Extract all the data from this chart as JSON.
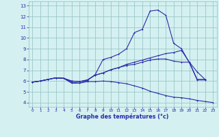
{
  "xlabel": "Graphe des températures (°c)",
  "x": [
    0,
    1,
    2,
    3,
    4,
    5,
    6,
    7,
    8,
    9,
    10,
    11,
    12,
    13,
    14,
    15,
    16,
    17,
    18,
    19,
    20,
    21,
    22,
    23
  ],
  "line1": [
    5.9,
    6.0,
    6.15,
    6.3,
    6.25,
    5.9,
    5.8,
    6.05,
    6.6,
    8.0,
    8.2,
    8.5,
    9.0,
    10.5,
    10.8,
    12.5,
    12.6,
    12.1,
    9.5,
    9.0,
    7.7,
    6.1,
    6.1,
    null
  ],
  "line2": [
    5.9,
    6.0,
    6.15,
    6.3,
    6.25,
    6.0,
    5.95,
    6.1,
    6.55,
    6.75,
    7.05,
    7.25,
    7.55,
    7.75,
    7.95,
    8.15,
    8.35,
    8.55,
    8.65,
    8.85,
    7.75,
    6.85,
    6.15,
    null
  ],
  "line3": [
    5.9,
    6.0,
    6.15,
    6.3,
    6.25,
    6.0,
    5.95,
    6.1,
    6.55,
    6.75,
    7.05,
    7.25,
    7.45,
    7.55,
    7.75,
    7.95,
    8.05,
    8.05,
    7.85,
    7.75,
    7.75,
    6.15,
    6.15,
    null
  ],
  "line4": [
    5.9,
    6.0,
    6.15,
    6.3,
    6.25,
    5.8,
    5.8,
    5.95,
    5.95,
    6.0,
    5.95,
    5.85,
    5.75,
    5.55,
    5.35,
    5.05,
    4.85,
    4.65,
    4.5,
    4.45,
    4.35,
    4.2,
    4.1,
    4.0
  ],
  "line_color": "#2929aa",
  "bg_color": "#d4f0f0",
  "grid_color": "#90c0c0",
  "xlim": [
    -0.5,
    23.5
  ],
  "ylim": [
    3.6,
    13.4
  ],
  "xticks": [
    0,
    1,
    2,
    3,
    4,
    5,
    6,
    7,
    8,
    9,
    10,
    11,
    12,
    13,
    14,
    15,
    16,
    17,
    18,
    19,
    20,
    21,
    22,
    23
  ],
  "yticks": [
    4,
    5,
    6,
    7,
    8,
    9,
    10,
    11,
    12,
    13
  ]
}
